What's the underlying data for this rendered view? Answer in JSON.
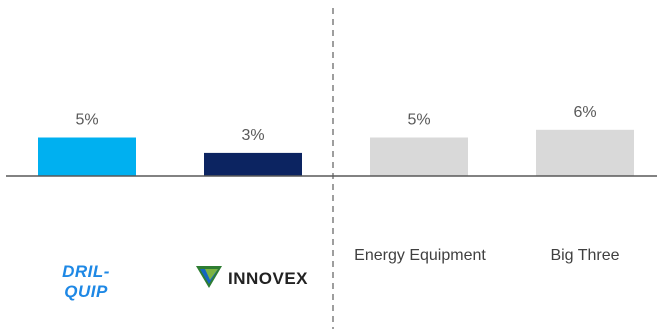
{
  "chart_data": {
    "type": "bar",
    "categories": [
      "DRIL-QUIP",
      "INNOVEX",
      "Energy Equipment",
      "Big Three"
    ],
    "values": [
      5,
      3,
      5,
      6
    ],
    "value_labels": [
      "5%",
      "3%",
      "5%",
      "6%"
    ],
    "title": "",
    "xlabel": "",
    "ylabel": "",
    "ylim": [
      0,
      6.5
    ],
    "grid": false,
    "legend": "none",
    "colors": [
      "#00b0f0",
      "#0c2461",
      "#d9d9d9",
      "#d9d9d9"
    ],
    "divider": "dashed vertical line between INNOVEX and Energy Equipment"
  },
  "logos": {
    "dril_quip": {
      "line1": "DRIL-",
      "line2": "QUIP",
      "color": "#1e88e5"
    },
    "innovex": {
      "text": "INNOVEX",
      "color": "#222222",
      "mark_colors": [
        "#2e7d32",
        "#1565c0",
        "#7cb342"
      ]
    }
  },
  "colors": {
    "baseline": "#595959",
    "divider": "#7f7f7f"
  }
}
